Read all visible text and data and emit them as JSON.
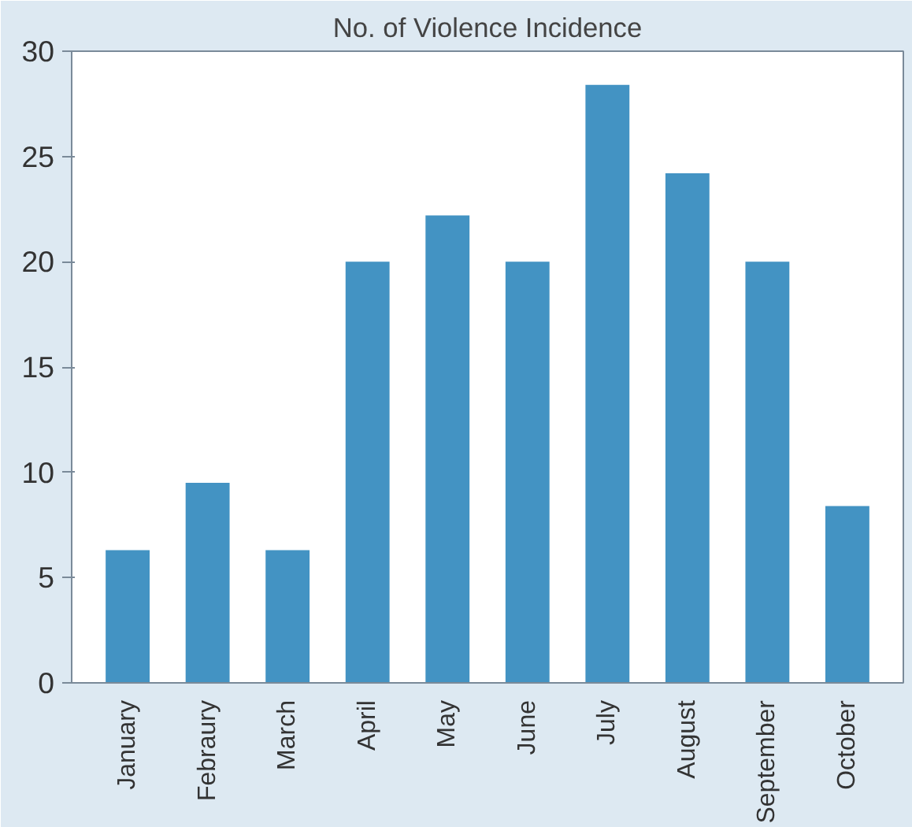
{
  "chart_data": {
    "type": "bar",
    "title": "No. of Violence Incidence",
    "categories": [
      "January",
      "Febraury",
      "March",
      "April",
      "May",
      "June",
      "July",
      "August",
      "September",
      "October"
    ],
    "values": [
      6.3,
      9.5,
      6.3,
      20,
      22.2,
      20,
      28.4,
      24.2,
      20,
      8.4
    ],
    "color": "#4393c3",
    "ylim": [
      0,
      30
    ],
    "yticks": [
      0,
      5,
      10,
      15,
      20,
      25,
      30
    ],
    "grid": false
  }
}
